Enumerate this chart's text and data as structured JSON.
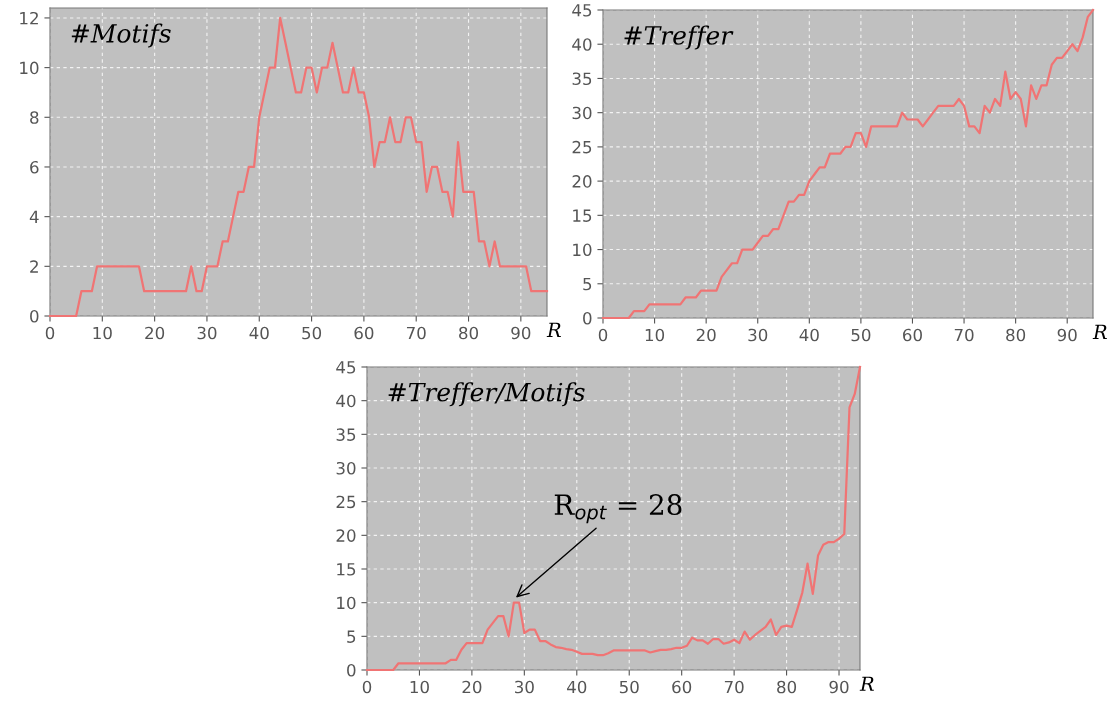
{
  "chart_data": [
    {
      "type": "line",
      "title": "#Motifs",
      "xlabel": "R",
      "xlim": [
        0,
        95
      ],
      "xticks": [
        0,
        10,
        20,
        30,
        40,
        50,
        60,
        70,
        80,
        90
      ],
      "ylim": [
        0,
        12.4
      ],
      "yticks": [
        0,
        2,
        4,
        6,
        8,
        10,
        12
      ],
      "grid": true,
      "x": [
        0,
        1,
        2,
        3,
        4,
        5,
        6,
        7,
        8,
        9,
        10,
        11,
        12,
        13,
        14,
        15,
        16,
        17,
        18,
        19,
        20,
        21,
        22,
        23,
        24,
        25,
        26,
        27,
        28,
        29,
        30,
        31,
        32,
        33,
        34,
        35,
        36,
        37,
        38,
        39,
        40,
        41,
        42,
        43,
        44,
        45,
        46,
        47,
        48,
        49,
        50,
        51,
        52,
        53,
        54,
        55,
        56,
        57,
        58,
        59,
        60,
        61,
        62,
        63,
        64,
        65,
        66,
        67,
        68,
        69,
        70,
        71,
        72,
        73,
        74,
        75,
        76,
        77,
        78,
        79,
        80,
        81,
        82,
        83,
        84,
        85,
        86,
        87,
        88,
        89,
        90,
        91,
        92,
        93,
        94,
        95
      ],
      "series": [
        {
          "color": "#f07474",
          "values": [
            0,
            0,
            0,
            0,
            0,
            0,
            1,
            1,
            1,
            2,
            2,
            2,
            2,
            2,
            2,
            2,
            2,
            2,
            1,
            1,
            1,
            1,
            1,
            1,
            1,
            1,
            1,
            2,
            1,
            1,
            2,
            2,
            2,
            3,
            3,
            4,
            5,
            5,
            6,
            6,
            8,
            9,
            10,
            10,
            12,
            11,
            10,
            9,
            9,
            10,
            10,
            9,
            10,
            10,
            11,
            10,
            9,
            9,
            10,
            9,
            9,
            8,
            6,
            7,
            7,
            8,
            7,
            7,
            8,
            8,
            7,
            7,
            5,
            6,
            6,
            5,
            5,
            4,
            7,
            5,
            5,
            5,
            3,
            3,
            2,
            3,
            2,
            2,
            2,
            2,
            2,
            2,
            1,
            1,
            1,
            1
          ]
        }
      ]
    },
    {
      "type": "line",
      "title": "#Treffer",
      "xlabel": "R",
      "xlim": [
        0,
        95
      ],
      "xticks": [
        0,
        10,
        20,
        30,
        40,
        50,
        60,
        70,
        80,
        90
      ],
      "ylim": [
        0,
        45
      ],
      "yticks": [
        0,
        5,
        10,
        15,
        20,
        25,
        30,
        35,
        40,
        45
      ],
      "grid": true,
      "x": [
        0,
        1,
        2,
        3,
        4,
        5,
        6,
        7,
        8,
        9,
        10,
        11,
        12,
        13,
        14,
        15,
        16,
        17,
        18,
        19,
        20,
        21,
        22,
        23,
        24,
        25,
        26,
        27,
        28,
        29,
        30,
        31,
        32,
        33,
        34,
        35,
        36,
        37,
        38,
        39,
        40,
        41,
        42,
        43,
        44,
        45,
        46,
        47,
        48,
        49,
        50,
        51,
        52,
        53,
        54,
        55,
        56,
        57,
        58,
        59,
        60,
        61,
        62,
        63,
        64,
        65,
        66,
        67,
        68,
        69,
        70,
        71,
        72,
        73,
        74,
        75,
        76,
        77,
        78,
        79,
        80,
        81,
        82,
        83,
        84,
        85,
        86,
        87,
        88,
        89,
        90,
        91,
        92,
        93,
        94,
        95
      ],
      "series": [
        {
          "color": "#f07474",
          "values": [
            0,
            0,
            0,
            0,
            0,
            0,
            1,
            1,
            1,
            2,
            2,
            2,
            2,
            2,
            2,
            2,
            3,
            3,
            3,
            4,
            4,
            4,
            4,
            6,
            7,
            8,
            8,
            10,
            10,
            10,
            11,
            12,
            12,
            13,
            13,
            15,
            17,
            17,
            18,
            18,
            20,
            21,
            22,
            22,
            24,
            24,
            24,
            25,
            25,
            27,
            27,
            25,
            28,
            28,
            28,
            28,
            28,
            28,
            30,
            29,
            29,
            29,
            28,
            29,
            30,
            31,
            31,
            31,
            31,
            32,
            31,
            28,
            28,
            27,
            31,
            30,
            32,
            31,
            36,
            32,
            33,
            32,
            28,
            34,
            32,
            34,
            34,
            37,
            38,
            38,
            39,
            40,
            39,
            41,
            44,
            45
          ]
        }
      ]
    },
    {
      "type": "line",
      "title": "#Treffer/Motifs",
      "xlabel": "R",
      "xlim": [
        0,
        94
      ],
      "xticks": [
        0,
        10,
        20,
        30,
        40,
        50,
        60,
        70,
        80,
        90
      ],
      "ylim": [
        0,
        45
      ],
      "yticks": [
        0,
        5,
        10,
        15,
        20,
        25,
        30,
        35,
        40,
        45
      ],
      "grid": true,
      "annotations": [
        {
          "text": "R$_{opt}$ = 28",
          "x": 28,
          "y": 10.5
        }
      ],
      "x": [
        0,
        1,
        2,
        3,
        4,
        5,
        6,
        7,
        8,
        9,
        10,
        11,
        12,
        13,
        14,
        15,
        16,
        17,
        18,
        19,
        20,
        21,
        22,
        23,
        24,
        25,
        26,
        27,
        28,
        29,
        30,
        31,
        32,
        33,
        34,
        35,
        36,
        37,
        38,
        39,
        40,
        41,
        42,
        43,
        44,
        45,
        46,
        47,
        48,
        49,
        50,
        51,
        52,
        53,
        54,
        55,
        56,
        57,
        58,
        59,
        60,
        61,
        62,
        63,
        64,
        65,
        66,
        67,
        68,
        69,
        70,
        71,
        72,
        73,
        74,
        75,
        76,
        77,
        78,
        79,
        80,
        81,
        82,
        83,
        84,
        85,
        86,
        87,
        88,
        89,
        90,
        91,
        92,
        93,
        94
      ],
      "series": [
        {
          "color": "#f07474",
          "values": [
            0,
            0,
            0,
            0,
            0,
            0,
            1,
            1,
            1,
            1,
            1,
            1,
            1,
            1,
            1,
            1,
            1.5,
            1.5,
            3,
            4,
            4,
            4,
            4,
            6,
            7,
            8,
            8,
            5,
            10,
            10,
            5.5,
            6,
            6,
            4.3,
            4.3,
            3.8,
            3.4,
            3.3,
            3.1,
            3,
            2.7,
            2.4,
            2.4,
            2.4,
            2.2,
            2.2,
            2.5,
            2.9,
            2.9,
            2.9,
            2.9,
            2.9,
            2.9,
            2.9,
            2.6,
            2.8,
            3,
            3,
            3.1,
            3.3,
            3.3,
            3.6,
            4.8,
            4.4,
            4.4,
            3.9,
            4.6,
            4.6,
            3.9,
            4.1,
            4.5,
            4,
            5.7,
            4.5,
            5.2,
            5.8,
            6.4,
            7.5,
            5.2,
            6.4,
            6.6,
            6.4,
            8.9,
            11.5,
            15.8,
            11.3,
            17,
            18.6,
            19,
            19,
            19.5,
            20.2,
            39,
            41,
            45
          ]
        }
      ]
    }
  ]
}
